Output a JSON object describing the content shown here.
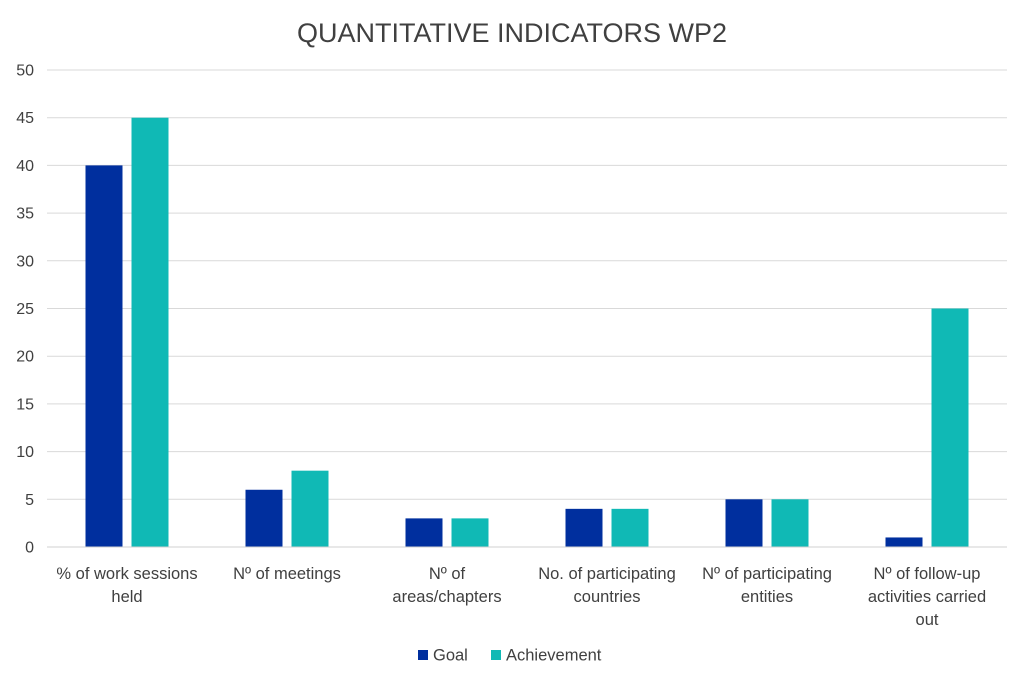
{
  "chart_data": {
    "type": "bar",
    "title": "QUANTITATIVE INDICATORS WP2",
    "xlabel": "",
    "ylabel": "",
    "ylim": [
      0,
      50
    ],
    "yticks": [
      0,
      5,
      10,
      15,
      20,
      25,
      30,
      35,
      40,
      45,
      50
    ],
    "grid": true,
    "legend_position": "bottom",
    "categories": [
      [
        "% of work sessions",
        "held"
      ],
      [
        "Nº of meetings"
      ],
      [
        "Nº of",
        "areas/chapters"
      ],
      [
        "No. of participating",
        "countries"
      ],
      [
        "Nº of participating",
        "entities"
      ],
      [
        "Nº of follow-up",
        "activities carried",
        "out"
      ]
    ],
    "series": [
      {
        "name": "Goal",
        "color": "#002F9E",
        "values": [
          40,
          6,
          3,
          4,
          5,
          1
        ]
      },
      {
        "name": "Achievement",
        "color": "#10B9B5",
        "values": [
          45,
          8,
          3,
          4,
          5,
          25
        ]
      }
    ]
  }
}
